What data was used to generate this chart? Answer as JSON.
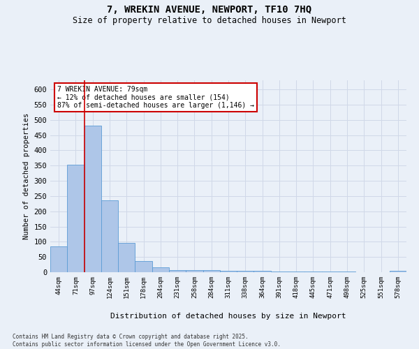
{
  "title_line1": "7, WREKIN AVENUE, NEWPORT, TF10 7HQ",
  "title_line2": "Size of property relative to detached houses in Newport",
  "xlabel": "Distribution of detached houses by size in Newport",
  "ylabel": "Number of detached properties",
  "annotation_line1": "7 WREKIN AVENUE: 79sqm",
  "annotation_line2": "← 12% of detached houses are smaller (154)",
  "annotation_line3": "87% of semi-detached houses are larger (1,146) →",
  "footer_line1": "Contains HM Land Registry data © Crown copyright and database right 2025.",
  "footer_line2": "Contains public sector information licensed under the Open Government Licence v3.0.",
  "bar_values": [
    85,
    352,
    480,
    237,
    96,
    37,
    16,
    8,
    8,
    7,
    4,
    4,
    4,
    3,
    3,
    3,
    2,
    2,
    1,
    1,
    5
  ],
  "categories": [
    "44sqm",
    "71sqm",
    "97sqm",
    "124sqm",
    "151sqm",
    "178sqm",
    "204sqm",
    "231sqm",
    "258sqm",
    "284sqm",
    "311sqm",
    "338sqm",
    "364sqm",
    "391sqm",
    "418sqm",
    "445sqm",
    "471sqm",
    "498sqm",
    "525sqm",
    "551sqm",
    "578sqm"
  ],
  "bar_color": "#aec6e8",
  "bar_edge_color": "#5b9bd5",
  "vline_x": 1.5,
  "vline_color": "#cc0000",
  "annotation_box_color": "#cc0000",
  "annotation_bg_color": "#ffffff",
  "grid_color": "#d0d8e8",
  "bg_color": "#eaf0f8",
  "ylim": [
    0,
    630
  ],
  "yticks": [
    0,
    50,
    100,
    150,
    200,
    250,
    300,
    350,
    400,
    450,
    500,
    550,
    600
  ]
}
